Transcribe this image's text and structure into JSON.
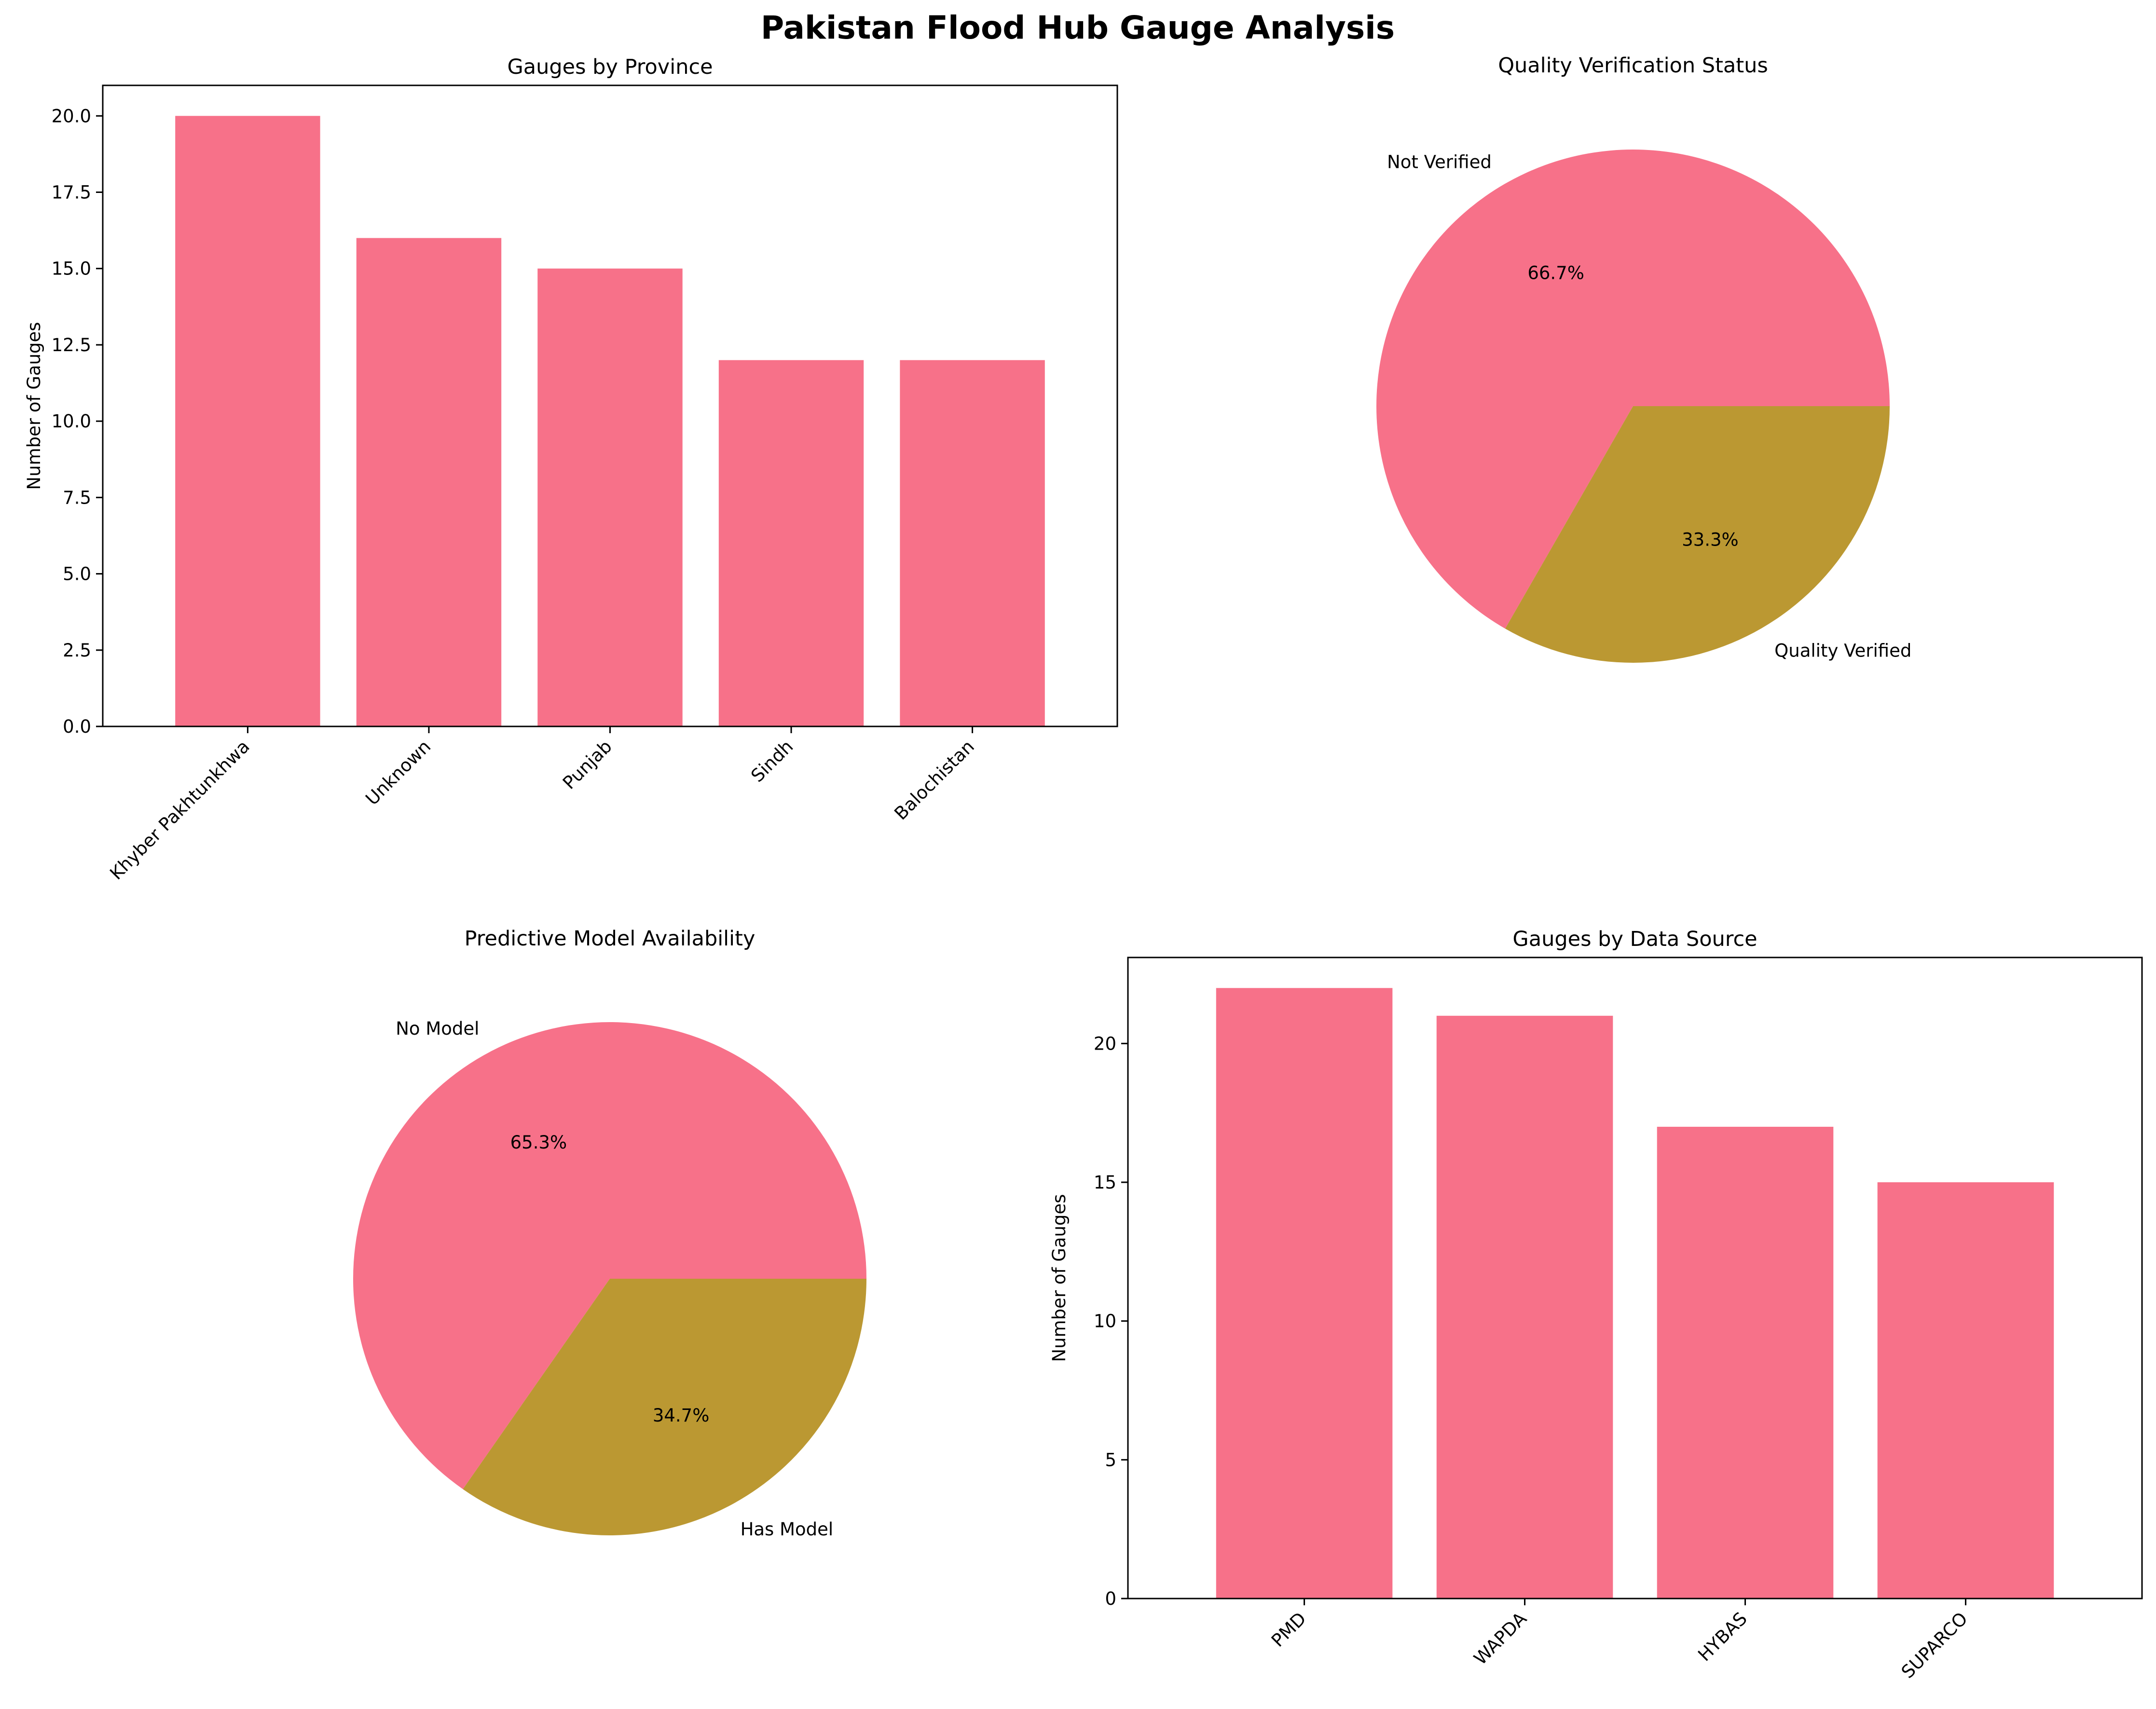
{
  "figure": {
    "title": "Pakistan Flood Hub Gauge Analysis"
  },
  "colors": {
    "primary": "#f77189",
    "secondary": "#bb9832",
    "axis": "#000000",
    "background": "#ffffff"
  },
  "chart_data": [
    {
      "id": "province",
      "type": "bar",
      "title": "Gauges by Province",
      "xlabel": "",
      "ylabel": "Number of Gauges",
      "categories": [
        "Khyber Pakhtunkhwa",
        "Unknown",
        "Punjab",
        "Sindh",
        "Balochistan"
      ],
      "values": [
        20,
        16,
        15,
        12,
        12
      ],
      "ylim": [
        0,
        21
      ],
      "yticks": [
        0.0,
        2.5,
        5.0,
        7.5,
        10.0,
        12.5,
        15.0,
        17.5,
        20.0
      ],
      "ytick_labels": [
        "0.0",
        "2.5",
        "5.0",
        "7.5",
        "10.0",
        "12.5",
        "15.0",
        "17.5",
        "20.0"
      ],
      "xtick_rotation": 45,
      "grid": false
    },
    {
      "id": "quality",
      "type": "pie",
      "title": "Quality Verification Status",
      "labels": [
        "Not Verified",
        "Quality Verified"
      ],
      "values": [
        66.7,
        33.3
      ],
      "autopct": [
        "66.7%",
        "33.3%"
      ],
      "colors": [
        "#f77189",
        "#bb9832"
      ],
      "startangle": 0
    },
    {
      "id": "model",
      "type": "pie",
      "title": "Predictive Model Availability",
      "labels": [
        "No Model",
        "Has Model"
      ],
      "values": [
        65.3,
        34.7
      ],
      "autopct": [
        "65.3%",
        "34.7%"
      ],
      "colors": [
        "#f77189",
        "#bb9832"
      ],
      "startangle": 0
    },
    {
      "id": "source",
      "type": "bar",
      "title": "Gauges by Data Source",
      "xlabel": "",
      "ylabel": "Number of Gauges",
      "categories": [
        "PMD",
        "WAPDA",
        "HYBAS",
        "SUPARCO"
      ],
      "values": [
        22,
        21,
        17,
        15
      ],
      "ylim": [
        0,
        23.1
      ],
      "yticks": [
        0,
        5,
        10,
        15,
        20
      ],
      "ytick_labels": [
        "0",
        "5",
        "10",
        "15",
        "20"
      ],
      "xtick_rotation": 45,
      "grid": false
    }
  ]
}
